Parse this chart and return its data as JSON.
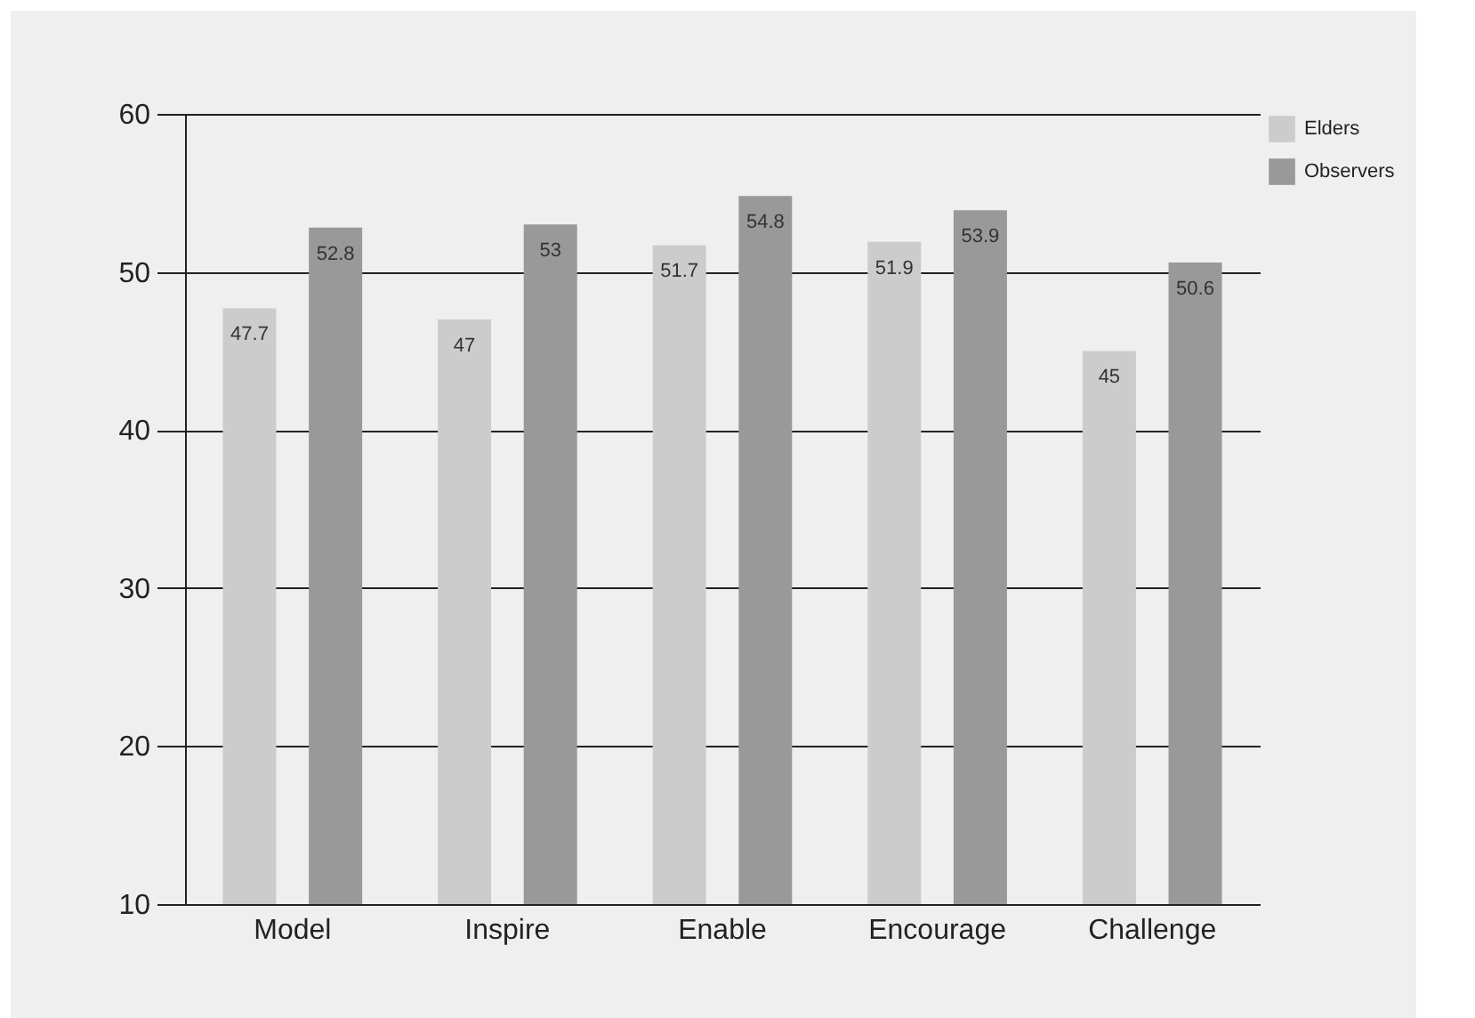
{
  "chart_data": {
    "type": "bar",
    "categories": [
      "Model",
      "Inspire",
      "Enable",
      "Encourage",
      "Challenge"
    ],
    "series": [
      {
        "name": "Elders",
        "color": "#cccccc",
        "values": [
          47.7,
          47,
          51.7,
          51.9,
          45
        ]
      },
      {
        "name": "Observers",
        "color": "#999999",
        "values": [
          52.8,
          53,
          54.8,
          53.9,
          50.6
        ]
      }
    ],
    "ylim": [
      10,
      60
    ],
    "yticks": [
      10,
      20,
      30,
      40,
      50,
      60
    ],
    "grid": "y",
    "legend": "right",
    "data_labels": true
  }
}
